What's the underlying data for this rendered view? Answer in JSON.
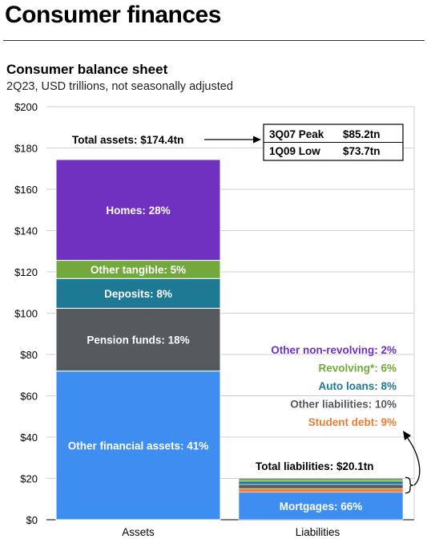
{
  "header": {
    "title": "Consumer finances"
  },
  "chart_data": {
    "type": "bar",
    "stacked": true,
    "title": "Consumer balance sheet",
    "subtitle": "2Q23, USD trillions, not seasonally adjusted",
    "categories": [
      "Assets",
      "Liabilities"
    ],
    "ylim": [
      0,
      200
    ],
    "yticks": [
      0,
      20,
      40,
      60,
      80,
      100,
      120,
      140,
      160,
      180,
      200
    ],
    "ytick_labels": [
      "$0",
      "$20",
      "$40",
      "$60",
      "$80",
      "$100",
      "$120",
      "$140",
      "$160",
      "$180",
      "$200"
    ],
    "grid": true,
    "assets": {
      "total_label": "Total assets:",
      "total_value": "$174.4tn",
      "total": 174.4,
      "segments": [
        {
          "label": "Other financial assets: 41%",
          "value": 72.0,
          "color": "#3d8ef0"
        },
        {
          "label": "Pension funds: 18%",
          "value": 30.4,
          "color": "#555a5e"
        },
        {
          "label": "Deposits: 8%",
          "value": 14.4,
          "color": "#1e7995"
        },
        {
          "label": "Other tangible: 5%",
          "value": 8.8,
          "color": "#72a83c"
        },
        {
          "label": "Homes: 28%",
          "value": 48.8,
          "color": "#7030c0"
        }
      ]
    },
    "liabilities": {
      "total_label": "Total liabilities:",
      "total_value": "$20.1tn",
      "total": 20.1,
      "segments": [
        {
          "label": "Mortgages: 66%",
          "value": 13.3,
          "color": "#3d8ef0"
        },
        {
          "label": "Student debt: 9%",
          "value": 1.8,
          "color": "#ed7d31"
        },
        {
          "label": "Other liabilities: 10%",
          "value": 2.0,
          "color": "#555a5e"
        },
        {
          "label": "Auto loans: 8%",
          "value": 1.6,
          "color": "#1e7995"
        },
        {
          "label": "Revolving*: 6%",
          "value": 1.2,
          "color": "#72a83c"
        },
        {
          "label": "Other non-revolving: 2%",
          "value": 0.4,
          "color": "#7030c0"
        }
      ],
      "legend_top_to_bottom": [
        {
          "label": "Other non-revolving:",
          "pct": "2%",
          "color": "#7030c0"
        },
        {
          "label": "Revolving*:",
          "pct": "6%",
          "color": "#72a83c"
        },
        {
          "label": "Auto loans:",
          "pct": "8%",
          "color": "#1e7995"
        },
        {
          "label": "Other liabilities:",
          "pct": "10%",
          "color": "#555a5e"
        },
        {
          "label": "Student debt:",
          "pct": "9%",
          "color": "#ed7d31"
        }
      ]
    },
    "callout_table": [
      {
        "period": "3Q07 Peak",
        "value": "$85.2tn"
      },
      {
        "period": "1Q09 Low",
        "value": "$73.7tn"
      }
    ]
  }
}
